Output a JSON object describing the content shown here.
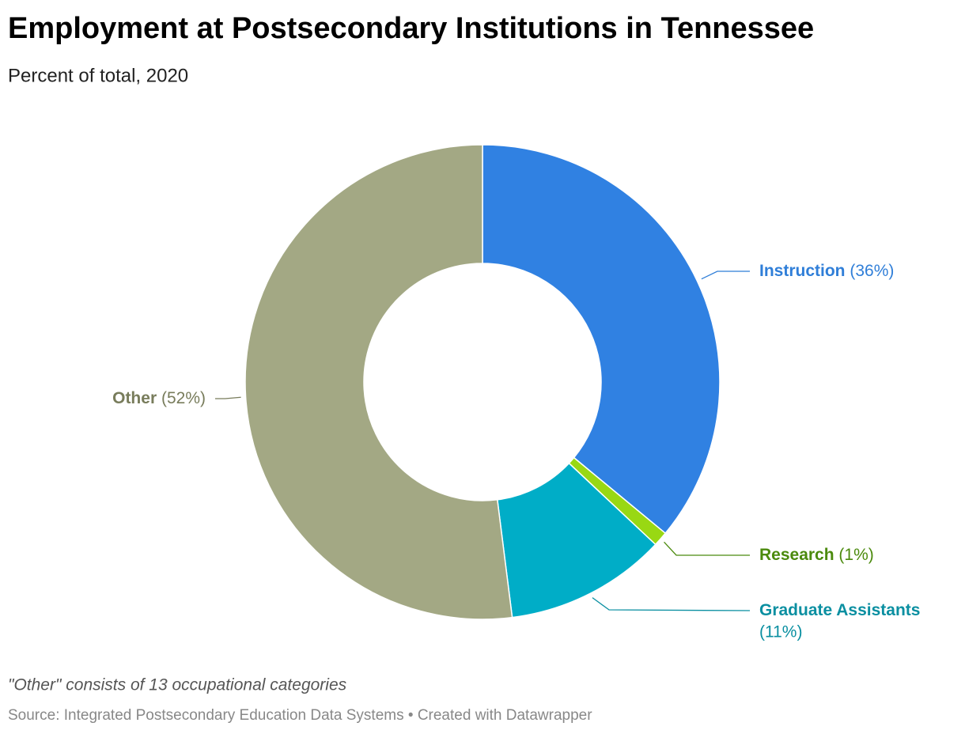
{
  "chart_data": {
    "type": "donut",
    "title": "Employment at Postsecondary Institutions in Tennessee",
    "subtitle": "Percent of total, 2020",
    "categories": [
      "Instruction",
      "Research",
      "Graduate Assistants",
      "Other"
    ],
    "values": [
      36,
      1,
      11,
      52
    ],
    "value_labels": [
      "(36%)",
      "(1%)",
      "(11%)",
      "(52%)"
    ],
    "colors": [
      "#3081e2",
      "#99d813",
      "#00adc7",
      "#a3a884"
    ],
    "label_colors": [
      "#2f7ed8",
      "#4b8a0d",
      "#0a8fa1",
      "#787c5b"
    ],
    "note": "\"Other\" consists of 13 occupational categories",
    "source": "Source: Integrated Postsecondary Education Data Systems • Created with Datawrapper"
  }
}
